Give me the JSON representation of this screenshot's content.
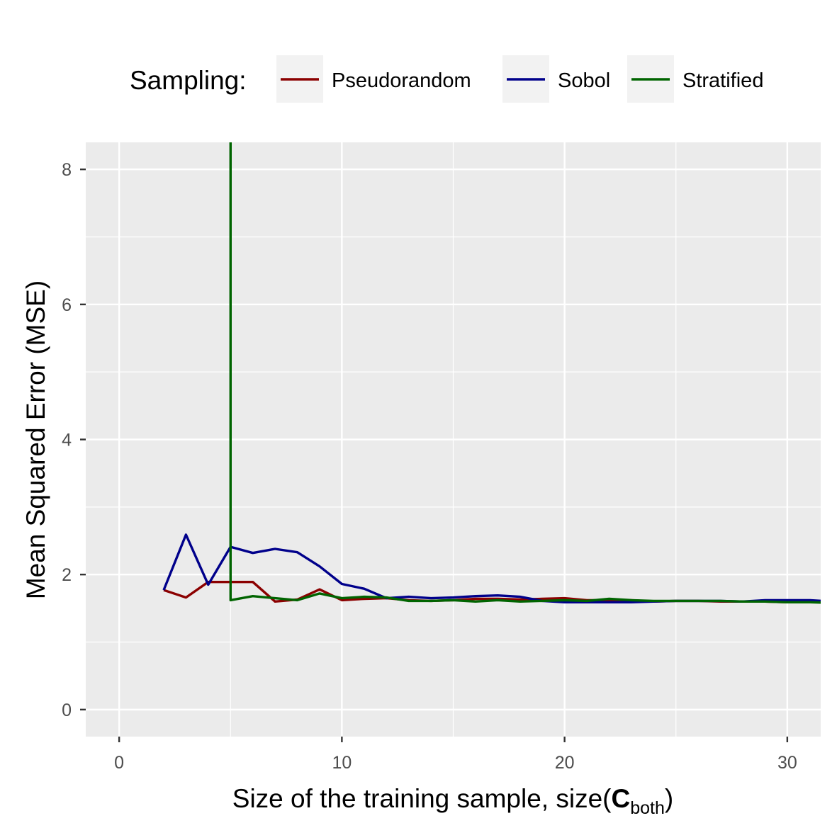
{
  "chart_data": {
    "type": "line",
    "legend": {
      "title": "Sampling:",
      "placement": "top"
    },
    "xlabel": {
      "prefix": "Size of the training sample, size(",
      "bold": "C",
      "subscript": "both",
      "suffix": ")"
    },
    "ylabel": "Mean Squared Error (MSE)",
    "xlim": [
      -1.5,
      31.5
    ],
    "ylim": [
      -0.4,
      8.4
    ],
    "xticks": [
      0,
      10,
      20,
      30
    ],
    "yticks": [
      0,
      2,
      4,
      6,
      8
    ],
    "grid": true,
    "series": [
      {
        "name": "Pseudorandom",
        "color": "#8B0000",
        "x": [
          2,
          3,
          4,
          5,
          6,
          7,
          8,
          9,
          10,
          11,
          12,
          13,
          14,
          15,
          16,
          17,
          18,
          19,
          20,
          21,
          22,
          23,
          24,
          25,
          26,
          27,
          28,
          29,
          30,
          31,
          32
        ],
        "y": [
          1.77,
          1.66,
          1.89,
          1.89,
          1.89,
          1.6,
          1.63,
          1.78,
          1.62,
          1.64,
          1.65,
          1.62,
          1.61,
          1.62,
          1.64,
          1.64,
          1.63,
          1.64,
          1.65,
          1.62,
          1.62,
          1.62,
          1.6,
          1.61,
          1.61,
          1.6,
          1.6,
          1.6,
          1.59,
          1.59,
          1.59
        ]
      },
      {
        "name": "Sobol",
        "color": "#00008B",
        "x": [
          2,
          3,
          4,
          5,
          6,
          7,
          8,
          9,
          10,
          11,
          12,
          13,
          14,
          15,
          16,
          17,
          18,
          19,
          20,
          21,
          22,
          23,
          24,
          25,
          26,
          27,
          28,
          29,
          30,
          31,
          32
        ],
        "y": [
          1.77,
          2.59,
          1.85,
          2.41,
          2.32,
          2.38,
          2.33,
          2.12,
          1.86,
          1.79,
          1.65,
          1.67,
          1.65,
          1.66,
          1.68,
          1.69,
          1.67,
          1.61,
          1.59,
          1.59,
          1.59,
          1.59,
          1.6,
          1.61,
          1.61,
          1.61,
          1.6,
          1.62,
          1.62,
          1.62,
          1.6
        ]
      },
      {
        "name": "Stratified",
        "color": "#006400",
        "x": [
          5,
          5,
          6,
          7,
          8,
          9,
          10,
          11,
          12,
          13,
          14,
          15,
          16,
          17,
          18,
          19,
          20,
          21,
          22,
          23,
          24,
          25,
          26,
          27,
          28,
          29,
          30,
          31,
          32
        ],
        "y": [
          8.4,
          1.62,
          1.68,
          1.65,
          1.62,
          1.72,
          1.65,
          1.67,
          1.66,
          1.61,
          1.61,
          1.62,
          1.6,
          1.62,
          1.6,
          1.61,
          1.62,
          1.61,
          1.64,
          1.62,
          1.61,
          1.61,
          1.61,
          1.61,
          1.6,
          1.6,
          1.59,
          1.59,
          1.58
        ]
      }
    ]
  }
}
